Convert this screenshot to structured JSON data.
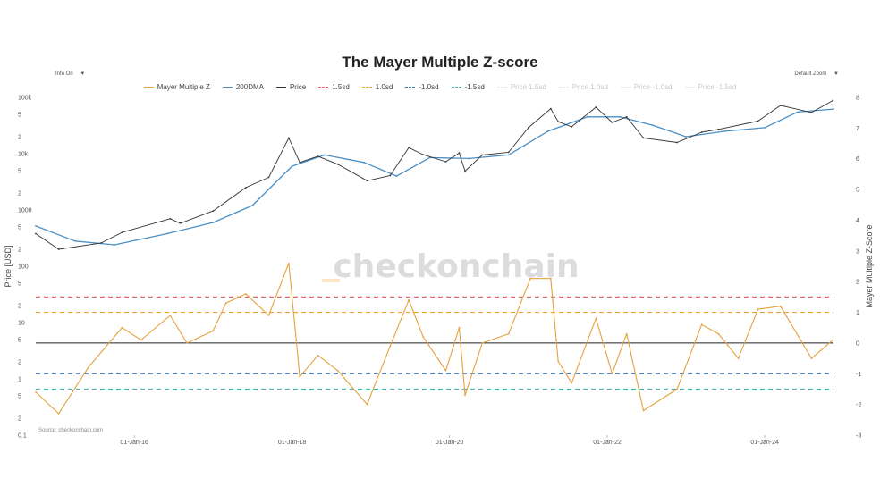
{
  "controls": {
    "info_label": "Info On",
    "zoom_label": "Default Zoom"
  },
  "chart_data": {
    "type": "line",
    "title": "The Mayer Multiple Z-score",
    "ylabel_left": "Price [USD]",
    "ylabel_right": "Mayer Multiple Z-Score",
    "source": "Source: checkonchain.com",
    "watermark": "checkonchain",
    "y_left_scale": "log",
    "y_left_range": [
      0.1,
      100000
    ],
    "y_right_range": [
      -3,
      8
    ],
    "x_range": [
      "2014-10-01",
      "2024-11-15"
    ],
    "x_ticks": [
      "01-Jan-16",
      "01-Jan-18",
      "01-Jan-20",
      "01-Jan-22",
      "01-Jan-24"
    ],
    "y_left_ticks": [
      "100k",
      "5",
      "2",
      "10k",
      "5",
      "2",
      "1000",
      "5",
      "2",
      "100",
      "5",
      "2",
      "10",
      "5",
      "2",
      "1",
      "5",
      "2",
      "0.1"
    ],
    "y_right_ticks": [
      "8",
      "7",
      "6",
      "5",
      "4",
      "3",
      "2",
      "1",
      "0",
      "-1",
      "-2",
      "-3"
    ],
    "grid": false,
    "legend_position": "top-center",
    "legend": [
      {
        "name": "Mayer Multiple Z",
        "color": "#e4a23d",
        "style": "solid",
        "visible": true
      },
      {
        "name": "200DMA",
        "color": "#4b8fc4",
        "style": "solid",
        "visible": true
      },
      {
        "name": "Price",
        "color": "#333333",
        "style": "solid",
        "visible": true
      },
      {
        "name": "1.5sd",
        "color": "#e06a6a",
        "style": "dashed",
        "visible": true
      },
      {
        "name": "1.0sd",
        "color": "#f0a030",
        "style": "dashed",
        "visible": true
      },
      {
        "name": "-1.0sd",
        "color": "#3f7cc8",
        "style": "dashed",
        "visible": true
      },
      {
        "name": "-1.5sd",
        "color": "#49b3b3",
        "style": "dashed",
        "visible": true
      },
      {
        "name": "Price 1.5sd",
        "color": "#e6e6e6",
        "style": "dashed",
        "visible": false
      },
      {
        "name": "Price 1.0sd",
        "color": "#e6e6e6",
        "style": "dashed",
        "visible": false
      },
      {
        "name": "Price -1.0sd",
        "color": "#e6e6e6",
        "style": "dashed",
        "visible": false
      },
      {
        "name": "Price -1.5sd",
        "color": "#e6e6e6",
        "style": "dashed",
        "visible": false
      }
    ],
    "bands_z": {
      "1.5sd": 1.5,
      "1.0sd": 1.0,
      "-1.0sd": -1.0,
      "-1.5sd": -1.5,
      "zero": 0
    },
    "series": [
      {
        "name": "Price",
        "x": [
          "2014-10-01",
          "2015-01-15",
          "2015-08-01",
          "2015-11-05",
          "2016-06-15",
          "2016-08-01",
          "2016-12-31",
          "2017-06-01",
          "2017-09-15",
          "2017-12-17",
          "2018-02-06",
          "2018-05-01",
          "2018-08-01",
          "2018-12-15",
          "2019-04-01",
          "2019-06-26",
          "2019-09-01",
          "2019-12-15",
          "2020-02-15",
          "2020-03-13",
          "2020-06-01",
          "2020-10-01",
          "2021-01-01",
          "2021-04-14",
          "2021-05-19",
          "2021-07-20",
          "2021-11-10",
          "2022-01-24",
          "2022-04-01",
          "2022-06-18",
          "2022-11-21",
          "2023-03-15",
          "2023-06-01",
          "2023-12-01",
          "2024-03-14",
          "2024-08-05",
          "2024-11-12"
        ],
        "values": [
          380,
          200,
          260,
          400,
          700,
          580,
          960,
          2500,
          3800,
          19000,
          7000,
          9000,
          6500,
          3300,
          4100,
          12800,
          9600,
          7200,
          10300,
          4900,
          9500,
          10600,
          29000,
          63000,
          37000,
          30000,
          67000,
          36000,
          45000,
          19000,
          15800,
          24000,
          27000,
          38000,
          72000,
          54000,
          88000
        ]
      },
      {
        "name": "200DMA",
        "x": [
          "2014-10-01",
          "2015-04-01",
          "2015-10-01",
          "2016-06-01",
          "2017-01-01",
          "2017-07-01",
          "2018-01-01",
          "2018-06-01",
          "2018-12-01",
          "2019-05-01",
          "2019-10-01",
          "2020-04-01",
          "2020-10-01",
          "2021-04-01",
          "2021-10-01",
          "2022-03-01",
          "2022-08-01",
          "2023-01-01",
          "2023-07-01",
          "2024-01-01",
          "2024-06-01",
          "2024-11-15"
        ],
        "values": [
          520,
          280,
          240,
          380,
          600,
          1200,
          6000,
          9500,
          7000,
          4000,
          8500,
          8200,
          9500,
          25000,
          45000,
          45000,
          32000,
          20000,
          25000,
          29000,
          55000,
          62000
        ]
      },
      {
        "name": "Mayer Multiple Z",
        "x": [
          "2014-10-01",
          "2015-01-15",
          "2015-06-01",
          "2015-11-05",
          "2016-02-01",
          "2016-06-15",
          "2016-09-01",
          "2016-12-31",
          "2017-03-01",
          "2017-06-01",
          "2017-09-15",
          "2017-12-17",
          "2018-02-06",
          "2018-05-01",
          "2018-08-01",
          "2018-12-15",
          "2019-04-01",
          "2019-06-26",
          "2019-09-01",
          "2019-12-15",
          "2020-02-15",
          "2020-03-13",
          "2020-06-01",
          "2020-10-01",
          "2021-01-10",
          "2021-04-14",
          "2021-05-19",
          "2021-07-20",
          "2021-11-10",
          "2022-01-24",
          "2022-04-01",
          "2022-06-18",
          "2022-11-21",
          "2023-03-15",
          "2023-06-01",
          "2023-09-01",
          "2023-12-01",
          "2024-03-14",
          "2024-08-05",
          "2024-11-12"
        ],
        "values": [
          -1.6,
          -2.3,
          -0.8,
          0.5,
          0.1,
          0.9,
          0.0,
          0.4,
          1.3,
          1.6,
          0.9,
          2.6,
          -1.1,
          -0.4,
          -0.9,
          -2.0,
          -0.1,
          1.4,
          0.2,
          -0.9,
          0.5,
          -1.7,
          0.0,
          0.3,
          2.1,
          2.1,
          -0.6,
          -1.3,
          0.8,
          -1.0,
          0.3,
          -2.2,
          -1.5,
          0.6,
          0.3,
          -0.5,
          1.1,
          1.2,
          -0.5,
          0.1
        ]
      }
    ]
  }
}
